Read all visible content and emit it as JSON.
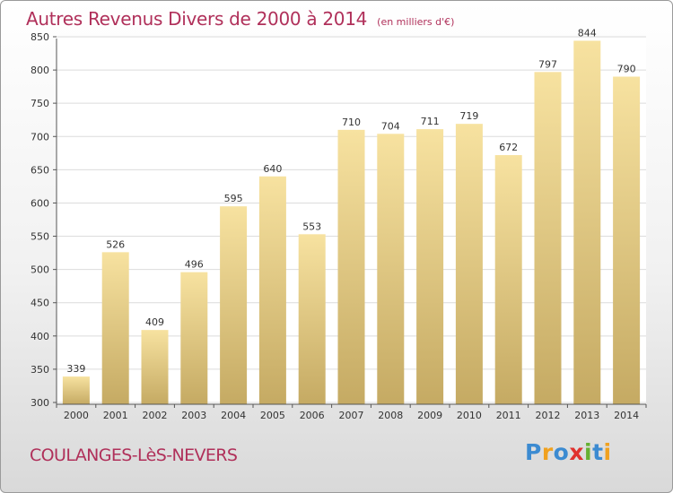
{
  "chart_data": {
    "type": "bar",
    "title": "Autres Revenus Divers de 2000 à 2014",
    "subtitle": "(en milliers d'€)",
    "categories": [
      "2000",
      "2001",
      "2002",
      "2003",
      "2004",
      "2005",
      "2006",
      "2007",
      "2008",
      "2009",
      "2010",
      "2011",
      "2012",
      "2013",
      "2014"
    ],
    "values": [
      339,
      526,
      409,
      496,
      595,
      640,
      553,
      710,
      704,
      711,
      719,
      672,
      797,
      844,
      790
    ],
    "ylim": [
      300,
      850
    ],
    "yticks": [
      300,
      350,
      400,
      450,
      500,
      550,
      600,
      650,
      700,
      750,
      800,
      850
    ],
    "grid": true,
    "bar_color_light": "#f7e2a0",
    "bar_color_dark": "#c5aa63"
  },
  "location": "COULANGES-LèS-NEVERS",
  "logo": {
    "text": "Proxiti",
    "letters": [
      {
        "ch": "P",
        "color": "#3c8bd1"
      },
      {
        "ch": "r",
        "color": "#f0a11f"
      },
      {
        "ch": "o",
        "color": "#3c8bd1"
      },
      {
        "ch": "x",
        "color": "#e0312e"
      },
      {
        "ch": "i",
        "color": "#66b032"
      },
      {
        "ch": "t",
        "color": "#3c8bd1"
      },
      {
        "ch": "i",
        "color": "#f0a11f"
      }
    ]
  }
}
